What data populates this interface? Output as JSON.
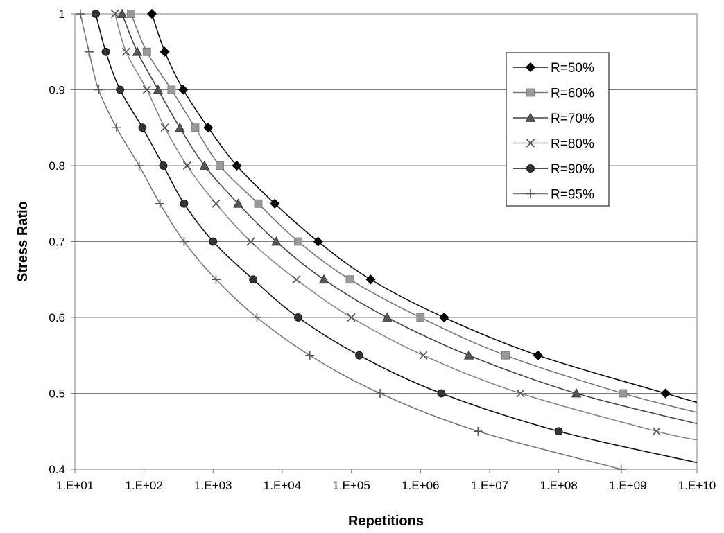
{
  "chart_data": {
    "type": "line",
    "title": "",
    "xlabel": "Repetitions",
    "ylabel": "Stress Ratio",
    "x_scale": "log",
    "xlim": [
      10,
      10000000000
    ],
    "ylim": [
      0.4,
      1.0
    ],
    "x_ticks": [
      "1.E+01",
      "1.E+02",
      "1.E+03",
      "1.E+04",
      "1.E+05",
      "1.E+06",
      "1.E+07",
      "1.E+08",
      "1.E+09",
      "1.E+10"
    ],
    "y_ticks": [
      "0.4",
      "0.5",
      "0.6",
      "0.7",
      "0.8",
      "0.9",
      "1"
    ],
    "grid": "horizontal",
    "legend_position": "top-right",
    "series": [
      {
        "name": "R=50%",
        "color": "#000000",
        "line_color": "#111111",
        "marker": "diamond",
        "x": [
          130,
          200,
          370,
          850,
          2200,
          7800,
          33000,
          190000,
          2200000,
          50000000,
          3500000000,
          11000000000
        ],
        "y": [
          1.0,
          0.95,
          0.9,
          0.85,
          0.8,
          0.75,
          0.7,
          0.65,
          0.6,
          0.55,
          0.5,
          0.487
        ]
      },
      {
        "name": "R=60%",
        "color": "#999999",
        "line_color": "#777777",
        "marker": "square",
        "x": [
          65,
          110,
          250,
          550,
          1250,
          4500,
          17000,
          95000,
          1000000,
          17000000,
          850000000,
          11000000000
        ],
        "y": [
          1.0,
          0.95,
          0.9,
          0.85,
          0.8,
          0.75,
          0.7,
          0.65,
          0.6,
          0.55,
          0.5,
          0.474
        ]
      },
      {
        "name": "R=70%",
        "color": "#555555",
        "line_color": "#444444",
        "marker": "triangle",
        "x": [
          48,
          80,
          160,
          330,
          750,
          2300,
          8200,
          40000,
          330000,
          5000000,
          180000000,
          11000000000
        ],
        "y": [
          1.0,
          0.95,
          0.9,
          0.85,
          0.8,
          0.75,
          0.7,
          0.65,
          0.6,
          0.55,
          0.5,
          0.459
        ]
      },
      {
        "name": "R=80%",
        "color": "#555555",
        "line_color": "#888888",
        "marker": "x",
        "x": [
          38,
          55,
          110,
          200,
          420,
          1100,
          3500,
          16000,
          100000,
          1100000,
          28000000,
          2600000000,
          11000000000
        ],
        "y": [
          1.0,
          0.95,
          0.9,
          0.85,
          0.8,
          0.75,
          0.7,
          0.65,
          0.6,
          0.55,
          0.5,
          0.45,
          0.438
        ]
      },
      {
        "name": "R=90%",
        "color": "#333333",
        "line_color": "#111111",
        "marker": "circle",
        "x": [
          20,
          28,
          45,
          95,
          190,
          380,
          1000,
          3800,
          17000,
          130000,
          2000000,
          100000000,
          11000000000
        ],
        "y": [
          1.0,
          0.95,
          0.9,
          0.85,
          0.8,
          0.75,
          0.7,
          0.65,
          0.6,
          0.55,
          0.5,
          0.45,
          0.408
        ]
      },
      {
        "name": "R=95%",
        "color": "#555555",
        "line_color": "#777777",
        "marker": "plus",
        "x": [
          12,
          16,
          22,
          40,
          85,
          170,
          380,
          1100,
          4300,
          25000,
          260000,
          6800000,
          800000000
        ],
        "y": [
          1.0,
          0.95,
          0.9,
          0.85,
          0.8,
          0.75,
          0.7,
          0.65,
          0.6,
          0.55,
          0.5,
          0.45,
          0.4
        ]
      }
    ]
  }
}
